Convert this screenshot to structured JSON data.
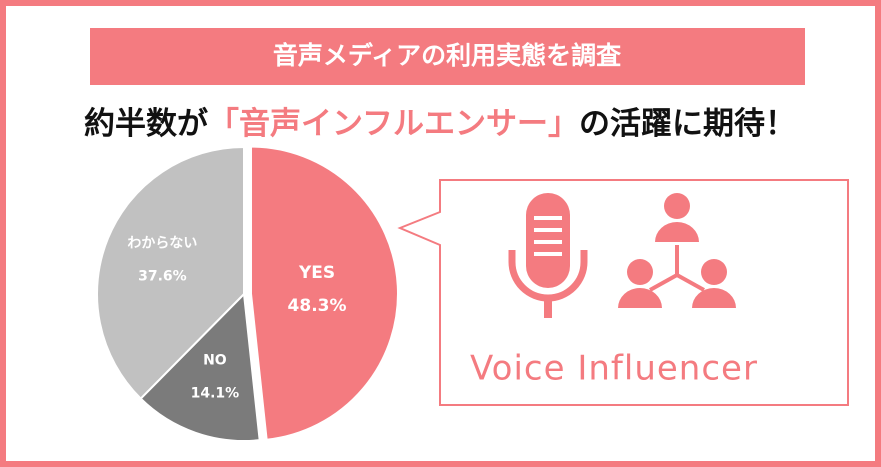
{
  "chart_data": {
    "type": "pie",
    "title": "音声メディアの利用実態を調査",
    "subtitle": [
      "約半数が",
      "「音声インフルエンサー」",
      "の活躍に期待！"
    ],
    "categories": [
      "YES",
      "NO",
      "わからない"
    ],
    "values": [
      48.3,
      14.1,
      37.6
    ],
    "value_labels": [
      "48.3%",
      "14.1%",
      "37.6%"
    ],
    "colors": [
      "#f47b80",
      "#7b7b7b",
      "#c1c1c1"
    ],
    "callout": "Voice Influencer"
  }
}
